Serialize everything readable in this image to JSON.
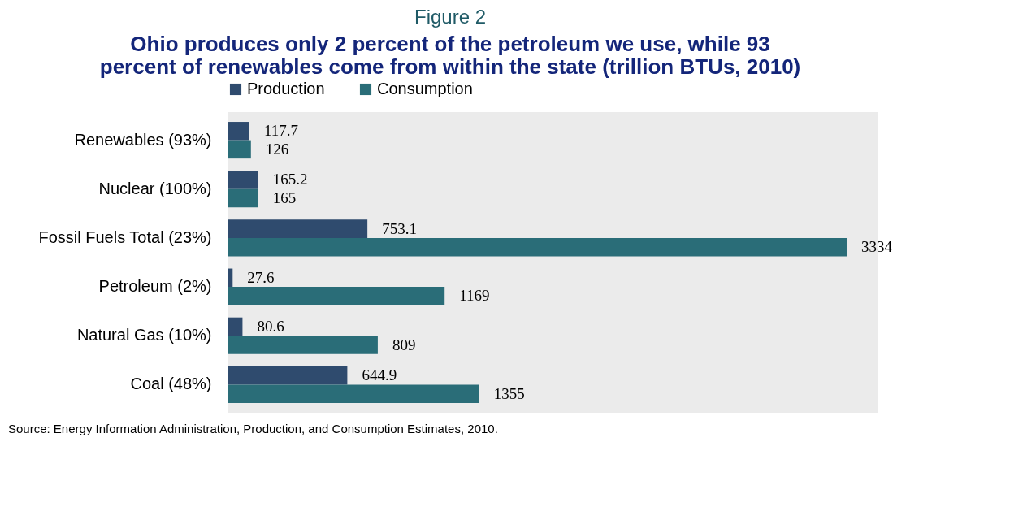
{
  "chart_data": {
    "type": "bar",
    "orientation": "horizontal",
    "title": "Figure 2",
    "subtitle": "Ohio produces only 2 percent of the petroleum we use, while 93 percent of renewables come from within the state (trillion BTUs, 2010)",
    "categories": [
      "Renewables (93%)",
      "Nuclear (100%)",
      "Fossil Fuels Total (23%)",
      "Petroleum (2%)",
      "Natural Gas (10%)",
      "Coal (48%)"
    ],
    "series": [
      {
        "name": "Production",
        "color": "#2f4b6e",
        "values": [
          117.7,
          165.2,
          753.1,
          27.6,
          80.6,
          644.9
        ]
      },
      {
        "name": "Consumption",
        "color": "#2a6d78",
        "values": [
          126,
          165,
          3334,
          1169,
          809,
          1355
        ]
      }
    ],
    "data_labels": true,
    "legend": "top",
    "grid": false,
    "annotations": [
      "Source:  Energy Information Administration, Production, and Consumption Estimates, 2010."
    ]
  }
}
